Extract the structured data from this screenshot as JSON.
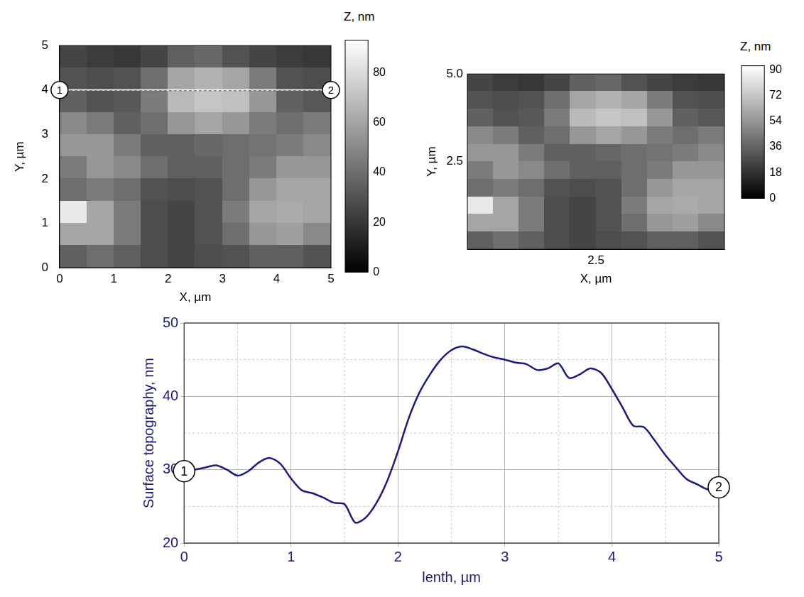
{
  "chart_data": [
    {
      "type": "heatmap",
      "xlabel": "X, µm",
      "ylabel": "Y, µm",
      "xlim": [
        0,
        5
      ],
      "ylim": [
        0,
        5
      ],
      "xticks": [
        0,
        1,
        2,
        3,
        4,
        5
      ],
      "yticks": [
        0,
        1,
        2,
        3,
        4,
        5
      ],
      "x": [
        0.25,
        0.75,
        1.25,
        1.75,
        2.25,
        2.75,
        3.25,
        3.75,
        4.25,
        4.75
      ],
      "y": [
        4.75,
        4.25,
        3.75,
        3.25,
        2.75,
        2.25,
        1.75,
        1.25,
        0.75,
        0.25
      ],
      "z": [
        [
          25,
          22,
          20,
          25,
          35,
          38,
          30,
          25,
          22,
          20
        ],
        [
          30,
          28,
          30,
          40,
          60,
          65,
          60,
          45,
          30,
          28
        ],
        [
          35,
          30,
          32,
          45,
          68,
          72,
          70,
          55,
          35,
          32
        ],
        [
          50,
          45,
          35,
          40,
          55,
          60,
          55,
          45,
          40,
          45
        ],
        [
          55,
          55,
          45,
          35,
          35,
          38,
          40,
          42,
          45,
          50
        ],
        [
          45,
          55,
          50,
          40,
          35,
          35,
          40,
          45,
          55,
          55
        ],
        [
          40,
          45,
          40,
          30,
          28,
          30,
          40,
          55,
          60,
          60
        ],
        [
          85,
          60,
          45,
          28,
          25,
          30,
          45,
          60,
          62,
          60
        ],
        [
          60,
          60,
          45,
          28,
          25,
          30,
          40,
          55,
          58,
          50
        ],
        [
          35,
          40,
          35,
          28,
          25,
          28,
          30,
          35,
          35,
          30
        ]
      ],
      "colorbar": {
        "title": "Z, nm",
        "range": [
          0,
          93
        ],
        "ticks": [
          0,
          20,
          40,
          60,
          80
        ]
      },
      "profile_line": {
        "y": 4,
        "x": [
          0,
          5
        ],
        "labels": [
          "1",
          "2"
        ]
      }
    },
    {
      "type": "surface",
      "xlabel": "X, µm",
      "ylabel": "Y, µm",
      "xlim": [
        0,
        5
      ],
      "ylim": [
        0,
        5
      ],
      "xticks": [
        2.5
      ],
      "yticks": [
        2.5,
        {
          "value": 5,
          "label": "5.0"
        }
      ],
      "x": [
        0.25,
        0.75,
        1.25,
        1.75,
        2.25,
        2.75,
        3.25,
        3.75,
        4.25,
        4.75
      ],
      "y": [
        4.75,
        4.25,
        3.75,
        3.25,
        2.75,
        2.25,
        1.75,
        1.25,
        0.75,
        0.25
      ],
      "z": [
        [
          25,
          22,
          20,
          25,
          35,
          38,
          30,
          25,
          22,
          20
        ],
        [
          30,
          28,
          30,
          40,
          60,
          65,
          60,
          45,
          30,
          28
        ],
        [
          35,
          30,
          32,
          45,
          68,
          72,
          70,
          55,
          35,
          32
        ],
        [
          50,
          45,
          35,
          40,
          55,
          60,
          55,
          45,
          40,
          45
        ],
        [
          55,
          55,
          45,
          35,
          35,
          38,
          40,
          42,
          45,
          50
        ],
        [
          45,
          55,
          50,
          40,
          35,
          35,
          40,
          45,
          55,
          55
        ],
        [
          40,
          45,
          40,
          30,
          28,
          30,
          40,
          55,
          60,
          60
        ],
        [
          85,
          60,
          45,
          28,
          25,
          30,
          45,
          60,
          62,
          60
        ],
        [
          60,
          60,
          45,
          28,
          25,
          30,
          40,
          55,
          58,
          50
        ],
        [
          35,
          40,
          35,
          28,
          25,
          28,
          30,
          35,
          35,
          30
        ]
      ],
      "colorbar": {
        "title": "Z, nm",
        "range": [
          0,
          93
        ],
        "ticks": [
          0,
          18,
          36,
          54,
          72,
          90
        ]
      }
    },
    {
      "type": "line",
      "xlabel": "lenth, µm",
      "ylabel": "Surface topography, nm",
      "xlim": [
        0,
        5
      ],
      "ylim": [
        20,
        50
      ],
      "xticks": [
        0,
        1,
        2,
        3,
        4,
        5
      ],
      "yticks": [
        20,
        30,
        40,
        50
      ],
      "grid": true,
      "color": "#1c1c80",
      "x": [
        0,
        0.1,
        0.2,
        0.3,
        0.4,
        0.5,
        0.6,
        0.7,
        0.8,
        0.9,
        1.0,
        1.1,
        1.2,
        1.3,
        1.4,
        1.5,
        1.6,
        1.7,
        1.8,
        1.9,
        2.0,
        2.1,
        2.2,
        2.3,
        2.4,
        2.5,
        2.6,
        2.7,
        2.8,
        2.9,
        3.0,
        3.1,
        3.2,
        3.3,
        3.4,
        3.5,
        3.6,
        3.7,
        3.8,
        3.9,
        4.0,
        4.1,
        4.2,
        4.3,
        4.4,
        4.5,
        4.6,
        4.7,
        4.8,
        4.9,
        5.0
      ],
      "values": [
        29.8,
        30.0,
        30.3,
        30.6,
        30.0,
        29.2,
        29.8,
        31.0,
        31.6,
        30.8,
        28.8,
        27.2,
        26.8,
        26.2,
        25.5,
        25.3,
        22.8,
        23.5,
        25.5,
        28.5,
        32.5,
        37.0,
        40.5,
        43.0,
        45.0,
        46.3,
        46.8,
        46.4,
        45.8,
        45.3,
        45.0,
        44.6,
        44.4,
        43.6,
        43.8,
        44.5,
        42.5,
        43.0,
        43.8,
        43.2,
        41.0,
        38.5,
        36.0,
        35.8,
        34.0,
        32.0,
        30.3,
        28.7,
        28.0,
        27.3,
        27.6
      ],
      "annotations": [
        {
          "text": "1",
          "x": 0,
          "y": 29.8
        },
        {
          "text": "2",
          "x": 5,
          "y": 27.6
        }
      ]
    }
  ]
}
